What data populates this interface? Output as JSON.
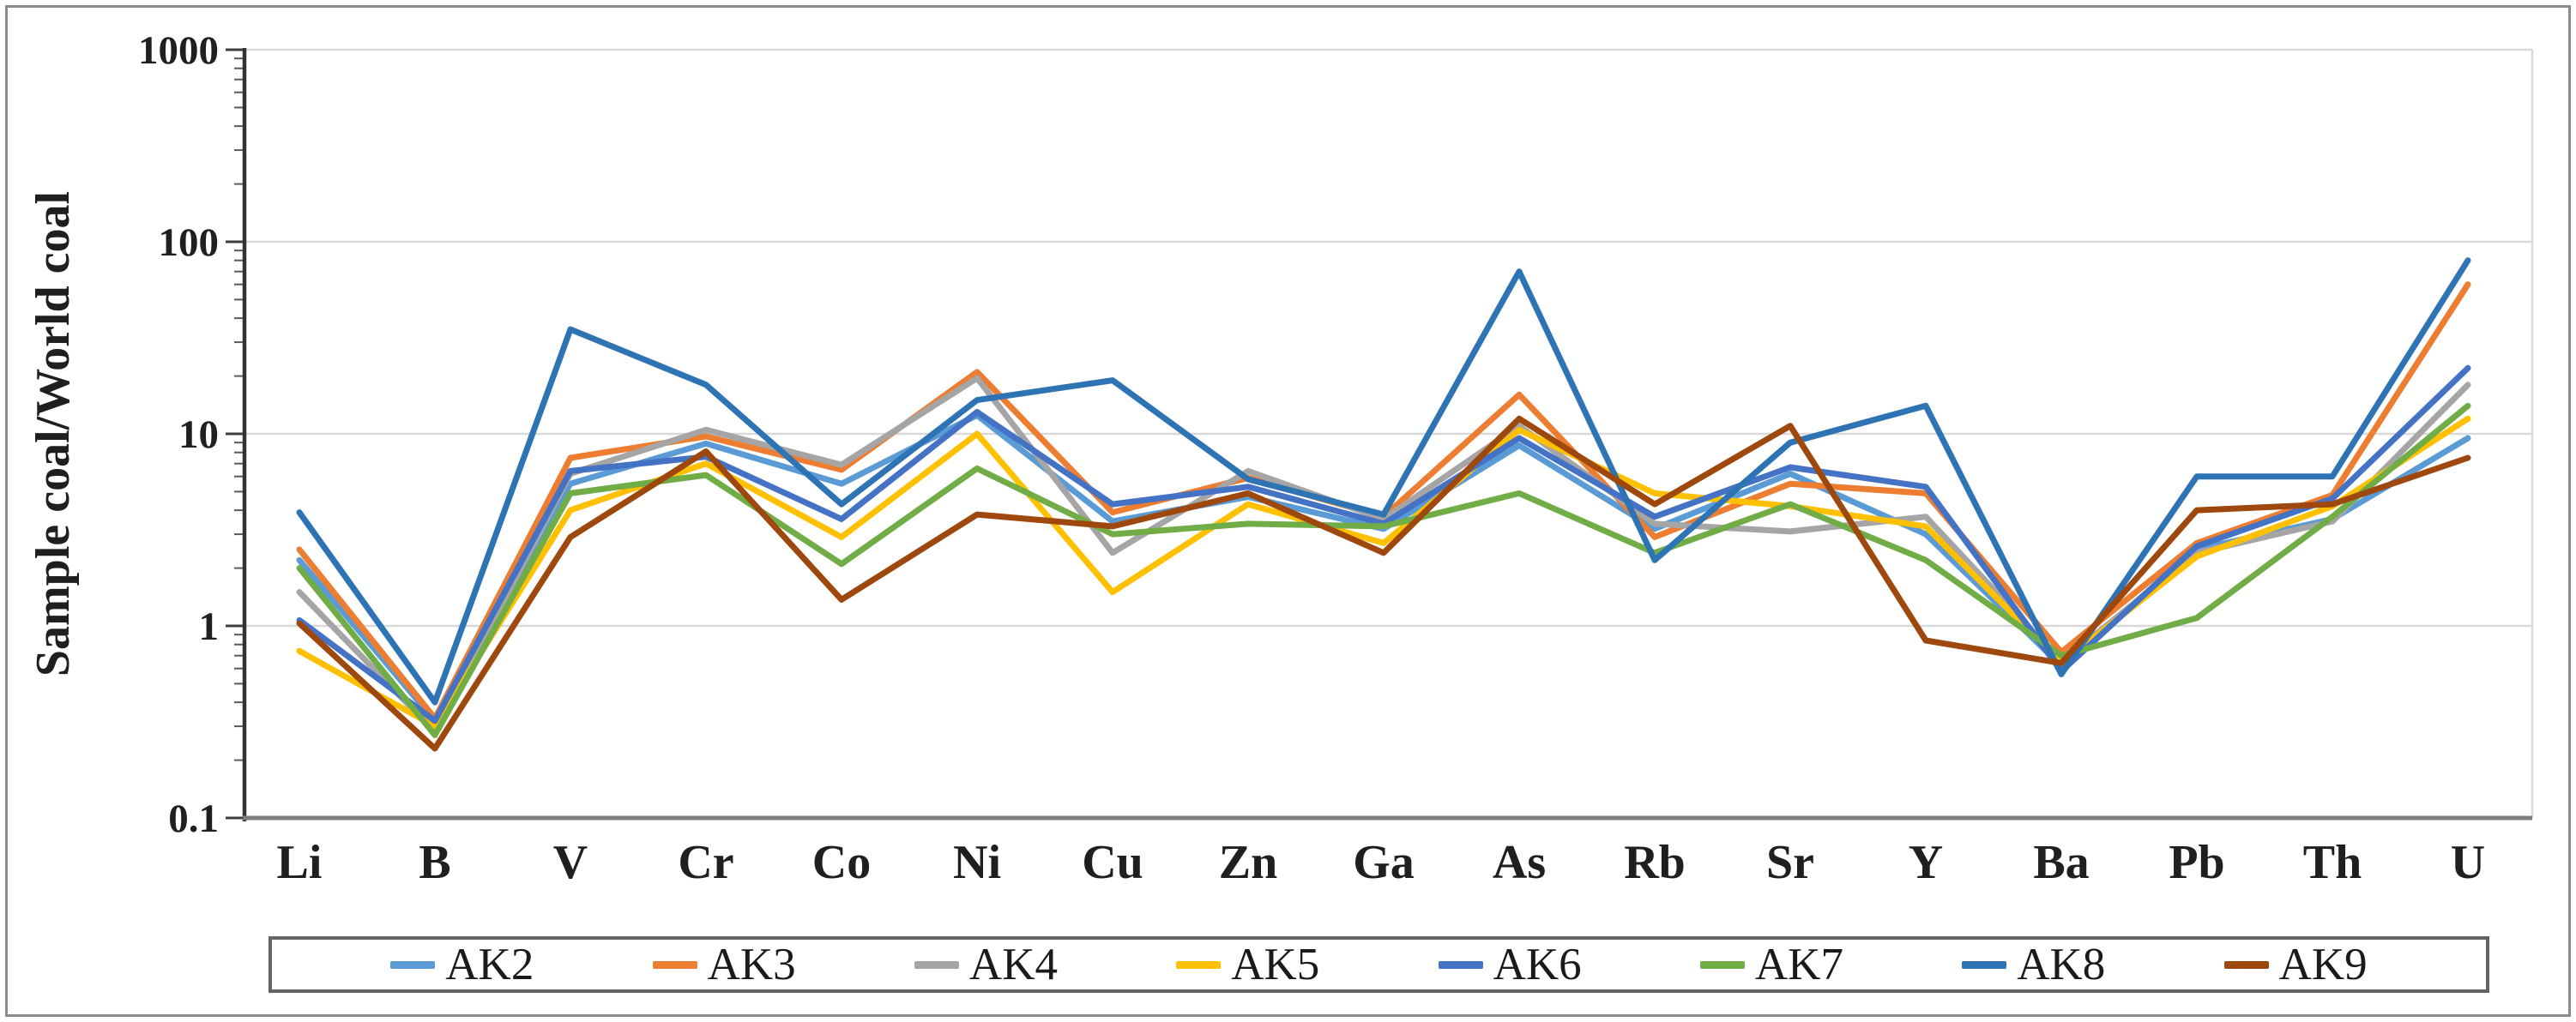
{
  "chart_data": {
    "type": "line",
    "title": "",
    "xlabel": "",
    "ylabel": "Sample coal/World coal",
    "y_scale": "log",
    "ylim": [
      0.1,
      1000
    ],
    "grid": "horizontal major gridlines on",
    "legend_position": "bottom",
    "y_ticks": [
      {
        "label": "1000",
        "value": 1000
      },
      {
        "label": "100",
        "value": 100
      },
      {
        "label": "10",
        "value": 10
      },
      {
        "label": "1",
        "value": 1
      },
      {
        "label": "0.1",
        "value": 0.1
      }
    ],
    "x_categories": [
      "Li",
      "B",
      "V",
      "Cr",
      "Co",
      "Ni",
      "Cu",
      "Zn",
      "Ga",
      "As",
      "Rb",
      "Sr",
      "Y",
      "Ba",
      "Pb",
      "Th",
      "U"
    ],
    "series": [
      {
        "name": "AK2",
        "color": "#5B9BD5",
        "values": [
          2.2,
          0.32,
          5.5,
          8.9,
          5.5,
          12.5,
          3.5,
          4.7,
          3.2,
          8.7,
          3.2,
          6.2,
          3.0,
          0.62,
          2.5,
          3.6,
          9.5
        ]
      },
      {
        "name": "AK3",
        "color": "#ED7D31",
        "values": [
          2.5,
          0.33,
          7.5,
          9.7,
          6.5,
          21,
          3.9,
          5.9,
          3.7,
          16,
          2.9,
          5.5,
          4.9,
          0.73,
          2.7,
          4.8,
          60
        ]
      },
      {
        "name": "AK4",
        "color": "#A5A5A5",
        "values": [
          1.5,
          0.28,
          6.2,
          10.5,
          6.9,
          19.5,
          2.4,
          6.4,
          3.6,
          11,
          3.4,
          3.1,
          3.7,
          0.65,
          2.4,
          3.5,
          18
        ]
      },
      {
        "name": "AK5",
        "color": "#FFC000",
        "values": [
          0.74,
          0.3,
          4.0,
          7.0,
          2.9,
          10,
          1.5,
          4.3,
          2.7,
          10.5,
          4.9,
          4.2,
          3.3,
          0.64,
          2.3,
          4.2,
          12
        ]
      },
      {
        "name": "AK6",
        "color": "#4472C4",
        "values": [
          1.07,
          0.32,
          6.4,
          7.6,
          3.6,
          13,
          4.3,
          5.3,
          3.4,
          9.5,
          3.7,
          6.7,
          5.3,
          0.58,
          2.6,
          4.6,
          22
        ]
      },
      {
        "name": "AK7",
        "color": "#70AD47",
        "values": [
          2.0,
          0.27,
          4.9,
          6.1,
          2.1,
          6.6,
          3.0,
          3.4,
          3.3,
          4.9,
          2.4,
          4.3,
          2.2,
          0.7,
          1.1,
          3.7,
          14
        ]
      },
      {
        "name": "AK8",
        "color": "#2E74B5",
        "values": [
          3.9,
          0.4,
          35,
          18,
          4.3,
          15,
          19,
          5.8,
          3.8,
          70,
          2.2,
          9.0,
          14,
          0.56,
          6.0,
          6.0,
          80
        ]
      },
      {
        "name": "AK9",
        "color": "#9E480E",
        "values": [
          1.03,
          0.23,
          2.9,
          8.1,
          1.37,
          3.8,
          3.3,
          4.9,
          2.4,
          12,
          4.3,
          11,
          0.84,
          0.64,
          4.0,
          4.3,
          7.5
        ]
      }
    ]
  }
}
